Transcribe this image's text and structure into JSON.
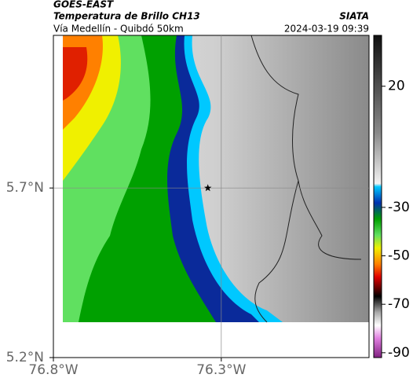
{
  "header": {
    "source": "GOES-EAST",
    "title": "Temperatura de Brillo CH13",
    "subtitle": "Vía Medellín - Quibdó 50km",
    "credit": "SIATA",
    "datetime": "2024-03-19 09:39"
  },
  "map": {
    "xlim": [
      -76.8,
      -75.86
    ],
    "ylim": [
      5.2,
      6.15
    ],
    "xticks": [
      {
        "value": -76.8,
        "label": "76.8°W"
      },
      {
        "value": -76.3,
        "label": "76.3°W"
      }
    ],
    "yticks": [
      {
        "value": 5.2,
        "label": "5.2°N"
      },
      {
        "value": 5.7,
        "label": "5.7°N"
      }
    ],
    "grid": true,
    "marker": {
      "lon": -76.34,
      "lat": 5.7
    }
  },
  "colorbar": {
    "lim": [
      -92,
      41
    ],
    "ticks": [
      20,
      -30,
      -50,
      -70,
      -90
    ]
  }
}
